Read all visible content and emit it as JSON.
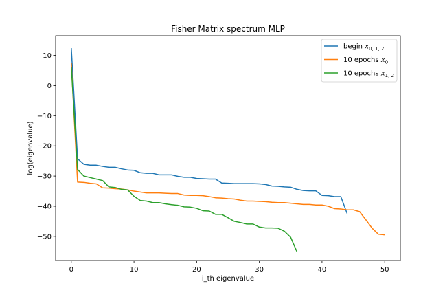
{
  "chart_data": {
    "type": "line",
    "title": "Fisher Matrix spectrum MLP",
    "xlabel": "i_th eigenvalue",
    "ylabel": "log(eigenvalue)",
    "xlim": [
      -2.5,
      52.5
    ],
    "ylim": [
      -58,
      16.5
    ],
    "x_ticks": [
      0,
      10,
      20,
      30,
      40,
      50
    ],
    "y_ticks": [
      10,
      0,
      -10,
      -20,
      -30,
      -40,
      -50
    ],
    "legend_position": "top-right",
    "grid": false,
    "series": [
      {
        "name_main": "begin ",
        "name_math": "x",
        "name_sub": "0, 1, 2",
        "color": "#1f77b4",
        "x": [
          0,
          1,
          2,
          3,
          4,
          5,
          6,
          7,
          8,
          9,
          10,
          11,
          12,
          13,
          14,
          15,
          16,
          17,
          18,
          19,
          20,
          21,
          22,
          23,
          24,
          25,
          26,
          27,
          28,
          29,
          30,
          31,
          32,
          33,
          34,
          35,
          36,
          37,
          38,
          39,
          40,
          41,
          42,
          43,
          44
        ],
        "y": [
          12.4,
          -24.3,
          -26.1,
          -26.4,
          -26.4,
          -26.8,
          -27.1,
          -27.1,
          -27.6,
          -28.0,
          -28.1,
          -28.9,
          -29.1,
          -29.1,
          -29.6,
          -29.6,
          -29.6,
          -30.1,
          -30.4,
          -30.4,
          -30.8,
          -30.9,
          -31.0,
          -31.0,
          -32.3,
          -32.4,
          -32.5,
          -32.5,
          -32.5,
          -32.5,
          -32.6,
          -32.8,
          -33.3,
          -33.4,
          -33.6,
          -33.7,
          -34.4,
          -34.8,
          -34.9,
          -34.9,
          -36.4,
          -36.5,
          -36.8,
          -36.8,
          -42.4
        ]
      },
      {
        "name_main": "10 epochs ",
        "name_math": "x",
        "name_sub": "0",
        "color": "#ff7f0e",
        "x": [
          0,
          1,
          2,
          3,
          4,
          5,
          6,
          7,
          8,
          9,
          10,
          11,
          12,
          13,
          14,
          15,
          16,
          17,
          18,
          19,
          20,
          21,
          22,
          23,
          24,
          25,
          26,
          27,
          28,
          29,
          30,
          31,
          32,
          33,
          34,
          35,
          36,
          37,
          38,
          39,
          40,
          41,
          42,
          43,
          44,
          45,
          46,
          47,
          48,
          49,
          50
        ],
        "y": [
          7.4,
          -32.0,
          -32.1,
          -32.4,
          -32.6,
          -33.9,
          -34.0,
          -34.2,
          -34.3,
          -34.6,
          -35.0,
          -35.3,
          -35.6,
          -35.6,
          -35.6,
          -35.7,
          -35.8,
          -35.8,
          -36.3,
          -36.4,
          -36.4,
          -36.5,
          -36.8,
          -37.2,
          -37.3,
          -37.5,
          -37.6,
          -38.0,
          -38.3,
          -38.3,
          -38.4,
          -38.5,
          -38.7,
          -38.8,
          -38.8,
          -39.0,
          -39.2,
          -39.4,
          -39.4,
          -39.6,
          -39.6,
          -40.0,
          -40.8,
          -40.9,
          -41.2,
          -41.2,
          -41.8,
          -44.5,
          -47.3,
          -49.3,
          -49.5
        ]
      },
      {
        "name_main": "10 epochs ",
        "name_math": "x",
        "name_sub": "1, 2",
        "color": "#2ca02c",
        "x": [
          0,
          1,
          2,
          3,
          4,
          5,
          6,
          7,
          8,
          9,
          10,
          11,
          12,
          13,
          14,
          15,
          16,
          17,
          18,
          19,
          20,
          21,
          22,
          23,
          24,
          25,
          26,
          27,
          28,
          29,
          30,
          31,
          32,
          33,
          34,
          35,
          36
        ],
        "y": [
          6.2,
          -27.8,
          -30.0,
          -30.5,
          -31.0,
          -31.5,
          -33.6,
          -33.8,
          -34.4,
          -34.6,
          -36.7,
          -38.1,
          -38.3,
          -38.8,
          -38.8,
          -39.2,
          -39.5,
          -39.7,
          -40.2,
          -40.3,
          -40.7,
          -41.5,
          -41.6,
          -42.7,
          -42.7,
          -43.8,
          -45.0,
          -45.4,
          -45.9,
          -45.9,
          -46.9,
          -47.2,
          -47.2,
          -47.3,
          -48.3,
          -50.3,
          -55.1
        ]
      }
    ]
  }
}
